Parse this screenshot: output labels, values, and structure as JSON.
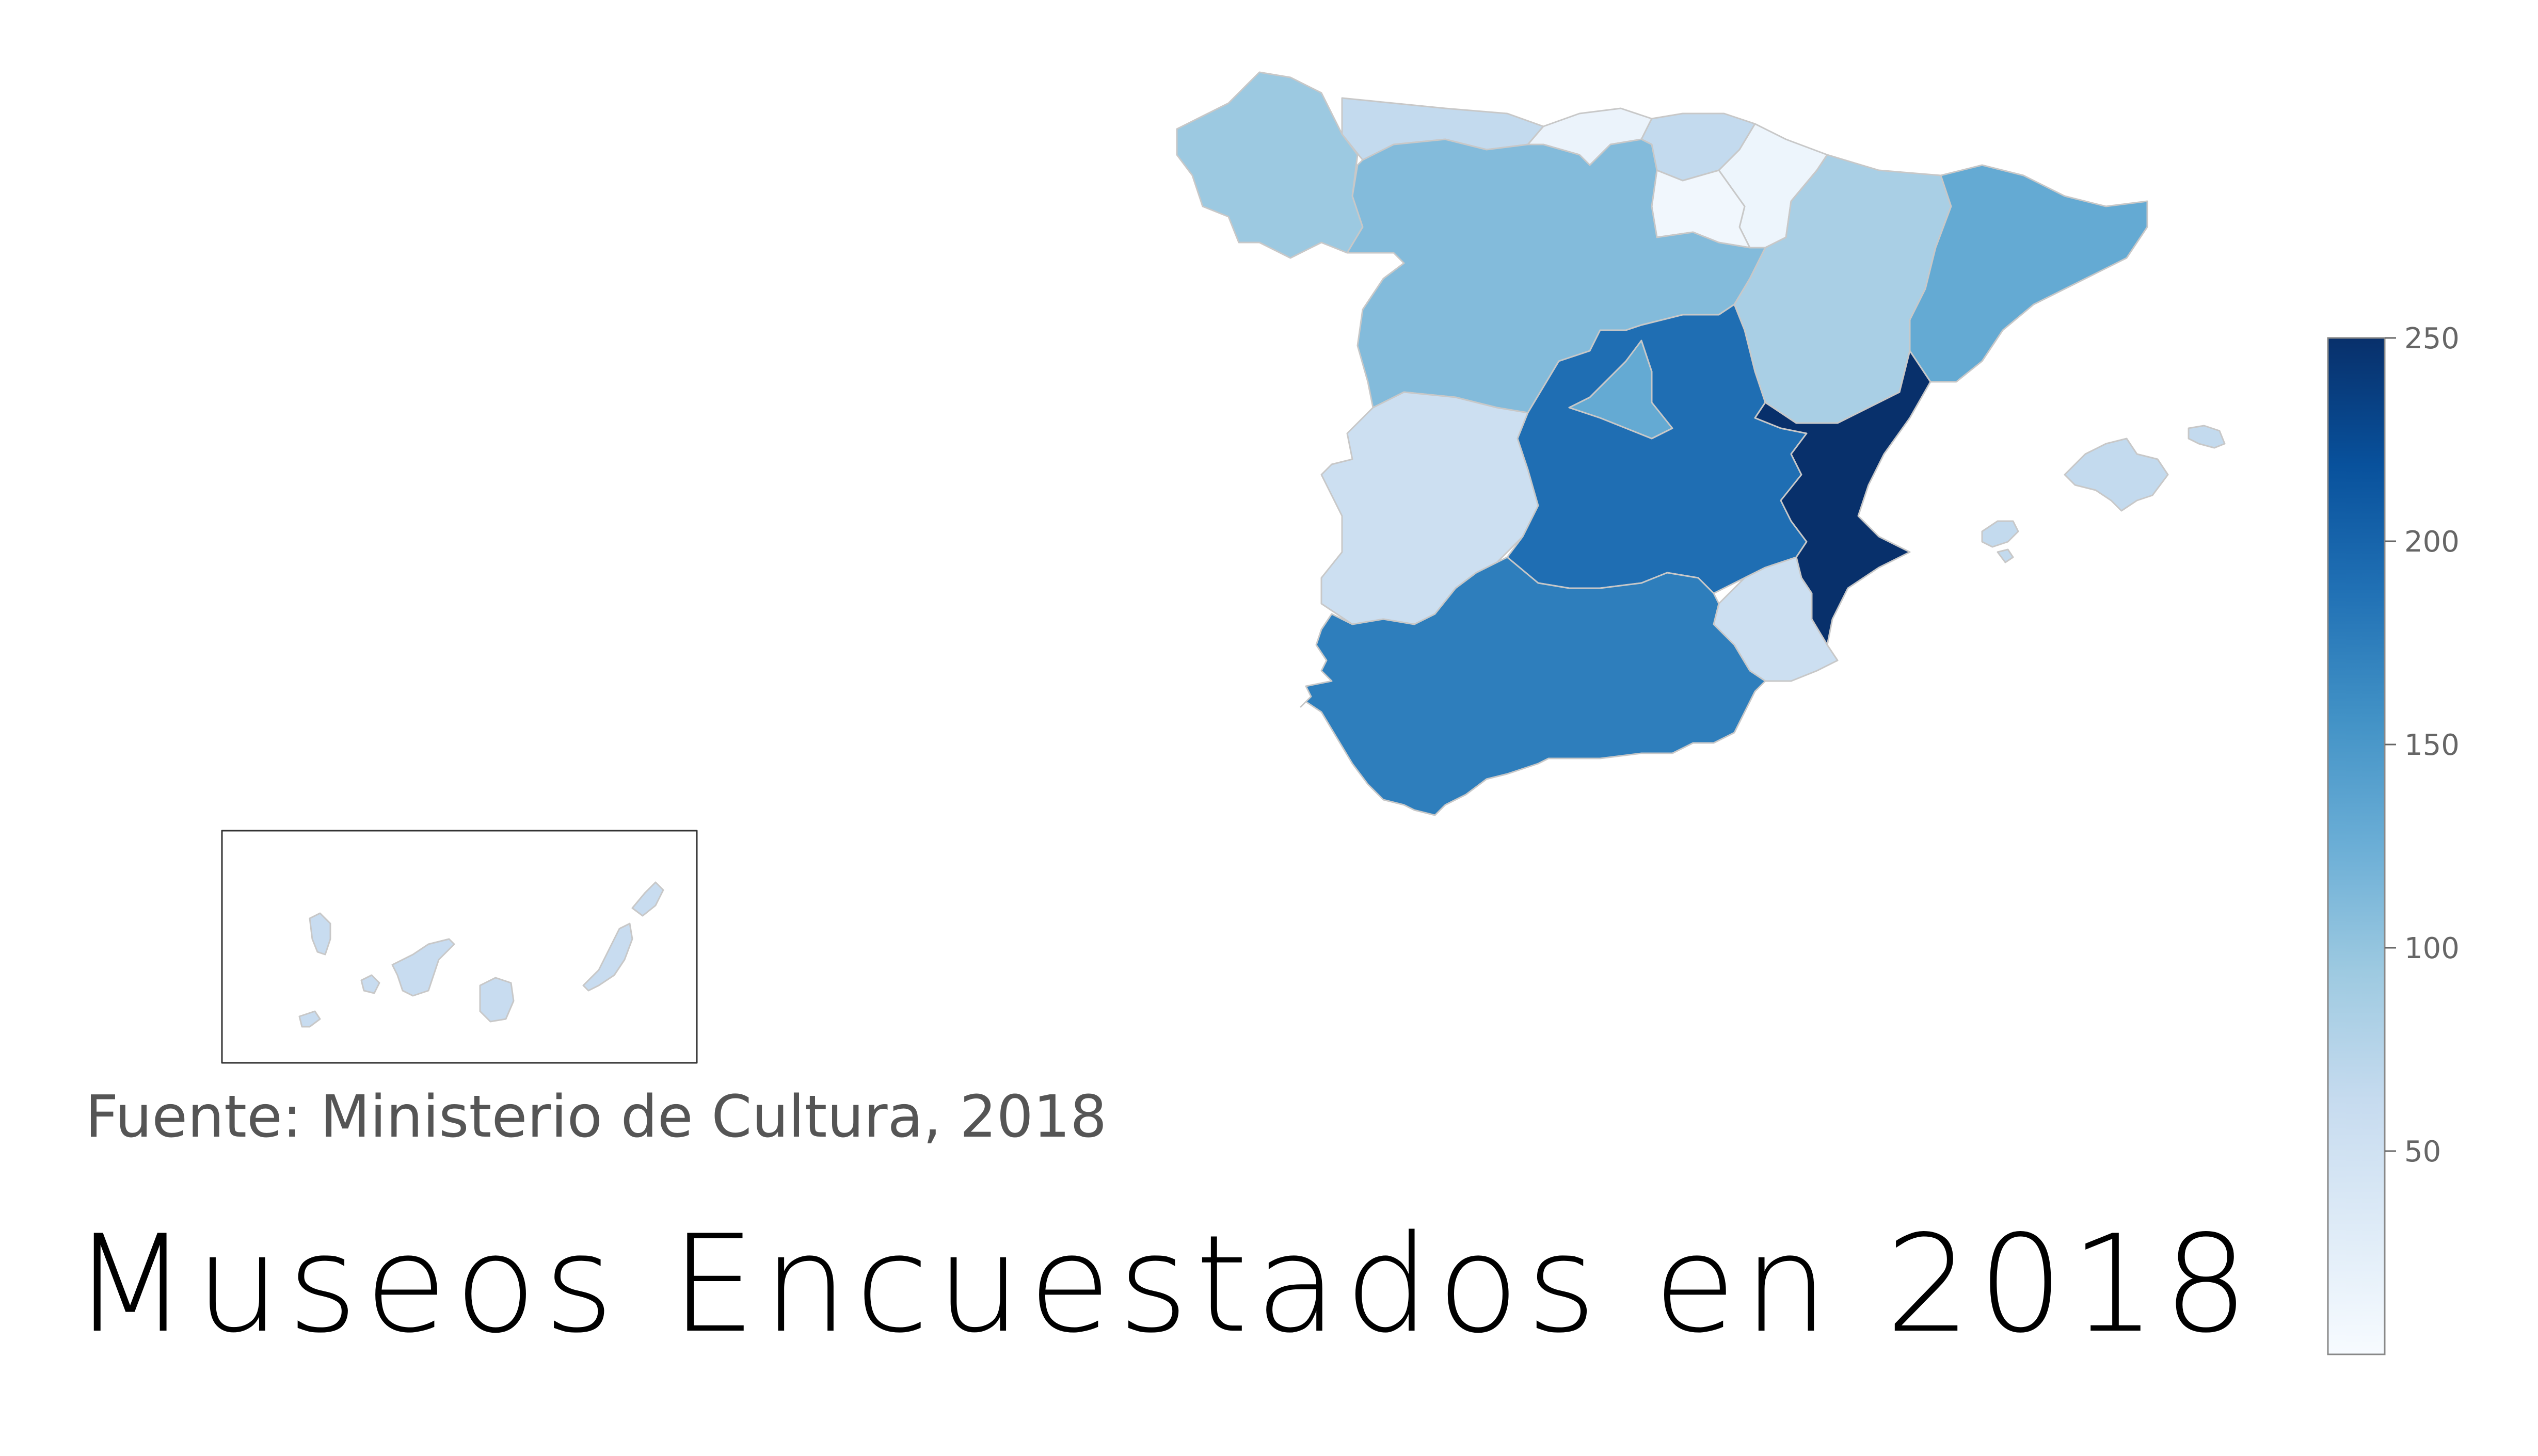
{
  "title": "Museos Encuestados en 2018",
  "source": "Fuente: Ministerio de Cultura, 2018",
  "colormap": "Blues",
  "colorbar": {
    "min": 0,
    "max": 250,
    "ticks": [
      "250",
      "200",
      "150",
      "100",
      "50"
    ],
    "tick_values": [
      250,
      200,
      150,
      100,
      50
    ]
  },
  "regions": [
    {
      "name": "Galicia",
      "value": 95
    },
    {
      "name": "Asturias",
      "value": 65
    },
    {
      "name": "Cantabria",
      "value": 15
    },
    {
      "name": "País Vasco",
      "value": 65
    },
    {
      "name": "Navarra",
      "value": 12
    },
    {
      "name": "La Rioja",
      "value": 8
    },
    {
      "name": "Aragón",
      "value": 85
    },
    {
      "name": "Cataluña",
      "value": 130
    },
    {
      "name": "Castilla y León",
      "value": 110
    },
    {
      "name": "Madrid",
      "value": 130
    },
    {
      "name": "Extremadura",
      "value": 55
    },
    {
      "name": "Castilla-La Mancha",
      "value": 190
    },
    {
      "name": "Comunitat Valenciana",
      "value": 250
    },
    {
      "name": "Región de Murcia",
      "value": 55
    },
    {
      "name": "Andalucía",
      "value": 175
    },
    {
      "name": "Illes Balears",
      "value": 65
    },
    {
      "name": "Canarias",
      "value": 60
    }
  ]
}
